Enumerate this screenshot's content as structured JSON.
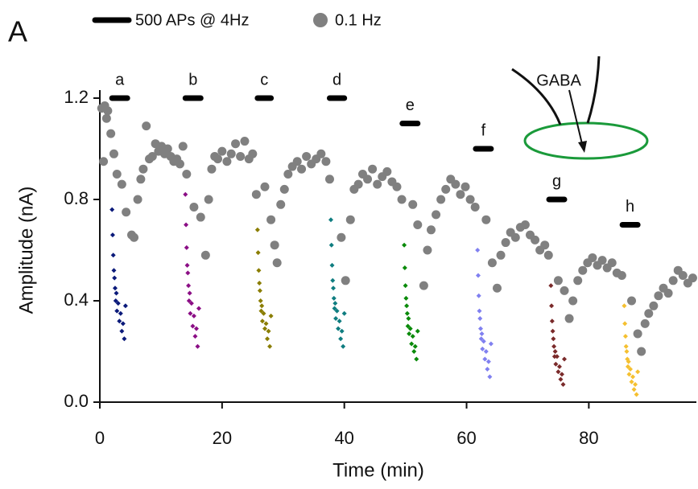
{
  "chart_data": {
    "type": "scatter",
    "panel_label": "A",
    "annotation": "GABA",
    "xlabel": "Time (min)",
    "ylabel": "Amplitude (nA)",
    "xlim": [
      0,
      97.6
    ],
    "ylim": [
      0,
      1.2
    ],
    "xticks": [
      0,
      20,
      40,
      60,
      80
    ],
    "yticks": [
      {
        "value": 0,
        "label": "0.0"
      },
      0.4,
      0.8,
      1.2
    ],
    "stimulation": {
      "name": "500 APs @ 4Hz",
      "color": "#000000",
      "labels": [
        "a",
        "b",
        "c",
        "d",
        "e",
        "f",
        "g",
        "h"
      ],
      "start": [
        2.0,
        14.0,
        25.8,
        37.6,
        49.5,
        61.5,
        73.5,
        85.5
      ],
      "end": [
        4.5,
        16.5,
        28.0,
        40.0,
        52.0,
        64.0,
        76.0,
        88.0
      ],
      "level": [
        1.2,
        1.2,
        1.2,
        1.2,
        1.1,
        1.0,
        0.8,
        0.7
      ]
    },
    "series": [
      {
        "name": "0.1 Hz",
        "color": "#808080",
        "x": [
          0.3,
          0.8,
          1.3,
          1.8,
          0.6,
          1.1,
          2.3,
          2.8,
          3.6,
          4.3,
          5.2,
          5.6,
          6.2,
          6.7,
          7.1,
          7.6,
          8.1,
          8.6,
          9.1,
          9.6,
          10.1,
          10.6,
          11.1,
          11.6,
          12.1,
          12.6,
          13.1,
          13.6,
          14.2,
          15.4,
          16.5,
          17.3,
          17.8,
          18.3,
          18.8,
          19.3,
          20.0,
          20.8,
          21.5,
          22.2,
          23.0,
          23.7,
          24.4,
          25.0,
          25.6,
          27.0,
          28.0,
          28.6,
          29.0,
          29.6,
          30.2,
          30.8,
          31.5,
          32.3,
          33.0,
          33.8,
          34.6,
          35.4,
          36.2,
          37.0,
          37.6,
          39.5,
          40.2,
          41.0,
          41.6,
          42.3,
          43.0,
          43.8,
          44.6,
          45.4,
          46.2,
          47.0,
          47.8,
          48.6,
          49.4,
          51.2,
          52.0,
          53.0,
          53.6,
          54.2,
          55.0,
          55.8,
          56.6,
          57.4,
          58.2,
          59.0,
          59.8,
          60.6,
          61.4,
          63.2,
          64.2,
          65.0,
          65.6,
          66.4,
          67.2,
          68.0,
          68.8,
          69.6,
          70.4,
          71.2,
          72.0,
          72.8,
          73.4,
          75.0,
          76.0,
          76.8,
          77.4,
          78.2,
          79.0,
          79.8,
          80.6,
          81.4,
          82.2,
          83.0,
          83.8,
          84.6,
          85.4,
          87.0,
          88.0,
          88.6,
          89.2,
          89.8,
          90.6,
          91.4,
          92.2,
          93.0,
          93.8,
          94.6,
          95.4,
          96.2,
          97.0
        ],
        "values": [
          1.16,
          1.17,
          1.15,
          1.06,
          0.95,
          1.12,
          0.98,
          0.9,
          0.86,
          0.75,
          0.66,
          0.65,
          0.8,
          0.88,
          0.92,
          1.09,
          0.96,
          0.97,
          1.02,
          0.99,
          1.01,
          0.98,
          1.0,
          0.97,
          0.95,
          0.96,
          0.94,
          1.01,
          0.9,
          0.77,
          0.73,
          0.58,
          0.8,
          0.92,
          0.97,
          0.96,
          0.99,
          0.95,
          0.98,
          1.02,
          0.97,
          1.03,
          0.96,
          0.98,
          0.82,
          0.85,
          0.72,
          0.62,
          0.55,
          0.78,
          0.84,
          0.9,
          0.93,
          0.95,
          0.92,
          0.97,
          0.94,
          0.96,
          0.98,
          0.95,
          0.88,
          0.65,
          0.48,
          0.72,
          0.84,
          0.86,
          0.9,
          0.88,
          0.92,
          0.86,
          0.89,
          0.91,
          0.87,
          0.85,
          0.8,
          0.78,
          0.7,
          0.46,
          0.6,
          0.68,
          0.74,
          0.8,
          0.84,
          0.88,
          0.86,
          0.82,
          0.85,
          0.8,
          0.77,
          0.72,
          0.55,
          0.45,
          0.58,
          0.63,
          0.67,
          0.65,
          0.69,
          0.7,
          0.66,
          0.64,
          0.6,
          0.62,
          0.58,
          0.48,
          0.44,
          0.33,
          0.4,
          0.48,
          0.52,
          0.55,
          0.57,
          0.54,
          0.56,
          0.53,
          0.55,
          0.51,
          0.5,
          0.4,
          0.27,
          0.2,
          0.31,
          0.35,
          0.38,
          0.42,
          0.45,
          0.43,
          0.48,
          0.52,
          0.5,
          0.47,
          0.49
        ]
      },
      {
        "color": "#0b1a7a",
        "x": [
          2.0,
          2.1,
          2.2,
          2.3,
          2.4,
          2.5,
          2.6,
          2.7,
          2.8,
          3.0,
          3.2,
          3.4,
          3.6,
          3.8,
          4.0,
          4.2
        ],
        "values": [
          0.76,
          0.66,
          0.58,
          0.52,
          0.49,
          0.45,
          0.4,
          0.43,
          0.36,
          0.39,
          0.32,
          0.35,
          0.28,
          0.31,
          0.25,
          0.38
        ]
      },
      {
        "color": "#8b0e85",
        "x": [
          14.0,
          14.1,
          14.2,
          14.3,
          14.4,
          14.5,
          14.6,
          14.7,
          14.8,
          15.0,
          15.2,
          15.4,
          15.6,
          15.8,
          16.0,
          16.2
        ],
        "values": [
          0.82,
          0.7,
          0.61,
          0.54,
          0.51,
          0.46,
          0.4,
          0.43,
          0.35,
          0.39,
          0.3,
          0.34,
          0.26,
          0.29,
          0.22,
          0.37
        ]
      },
      {
        "color": "#8a7d00",
        "x": [
          25.8,
          25.9,
          26.0,
          26.1,
          26.2,
          26.3,
          26.4,
          26.5,
          26.6,
          26.8,
          27.0,
          27.2,
          27.4,
          27.6,
          27.8,
          28.0
        ],
        "values": [
          0.68,
          0.59,
          0.52,
          0.47,
          0.44,
          0.4,
          0.36,
          0.38,
          0.32,
          0.35,
          0.29,
          0.31,
          0.25,
          0.28,
          0.22,
          0.34
        ]
      },
      {
        "color": "#0f7d80",
        "x": [
          37.8,
          37.9,
          38.0,
          38.1,
          38.2,
          38.3,
          38.4,
          38.5,
          38.6,
          38.8,
          39.0,
          39.2,
          39.4,
          39.6,
          39.8,
          40.0
        ],
        "values": [
          0.72,
          0.62,
          0.54,
          0.48,
          0.45,
          0.41,
          0.37,
          0.39,
          0.33,
          0.36,
          0.29,
          0.32,
          0.25,
          0.28,
          0.22,
          0.35
        ]
      },
      {
        "color": "#0a8a0a",
        "x": [
          49.8,
          49.9,
          50.0,
          50.1,
          50.2,
          50.3,
          50.4,
          50.5,
          50.6,
          50.8,
          51.0,
          51.2,
          51.4,
          51.6,
          51.8,
          52.0
        ],
        "values": [
          0.62,
          0.53,
          0.46,
          0.41,
          0.38,
          0.35,
          0.3,
          0.33,
          0.27,
          0.29,
          0.23,
          0.26,
          0.2,
          0.22,
          0.17,
          0.28
        ]
      },
      {
        "color": "#8080f0",
        "x": [
          61.8,
          61.9,
          62.0,
          62.1,
          62.2,
          62.3,
          62.4,
          62.5,
          62.6,
          62.8,
          63.0,
          63.2,
          63.4,
          63.6,
          63.8,
          64.0
        ],
        "values": [
          0.6,
          0.5,
          0.42,
          0.36,
          0.33,
          0.29,
          0.25,
          0.27,
          0.21,
          0.24,
          0.17,
          0.2,
          0.13,
          0.16,
          0.1,
          0.23
        ]
      },
      {
        "color": "#7a2a2a",
        "x": [
          73.8,
          73.9,
          74.0,
          74.1,
          74.2,
          74.3,
          74.4,
          74.5,
          74.6,
          74.8,
          75.0,
          75.2,
          75.4,
          75.6,
          75.8,
          76.0
        ],
        "values": [
          0.46,
          0.38,
          0.32,
          0.28,
          0.25,
          0.22,
          0.18,
          0.2,
          0.15,
          0.18,
          0.12,
          0.14,
          0.09,
          0.11,
          0.07,
          0.17
        ]
      },
      {
        "color": "#f5c030",
        "x": [
          85.8,
          85.9,
          86.0,
          86.1,
          86.2,
          86.3,
          86.4,
          86.5,
          86.6,
          86.8,
          87.0,
          87.2,
          87.4,
          87.6,
          87.8,
          88.0
        ],
        "values": [
          0.38,
          0.31,
          0.26,
          0.22,
          0.2,
          0.17,
          0.14,
          0.16,
          0.11,
          0.13,
          0.08,
          0.1,
          0.05,
          0.07,
          0.03,
          0.12
        ]
      }
    ]
  }
}
